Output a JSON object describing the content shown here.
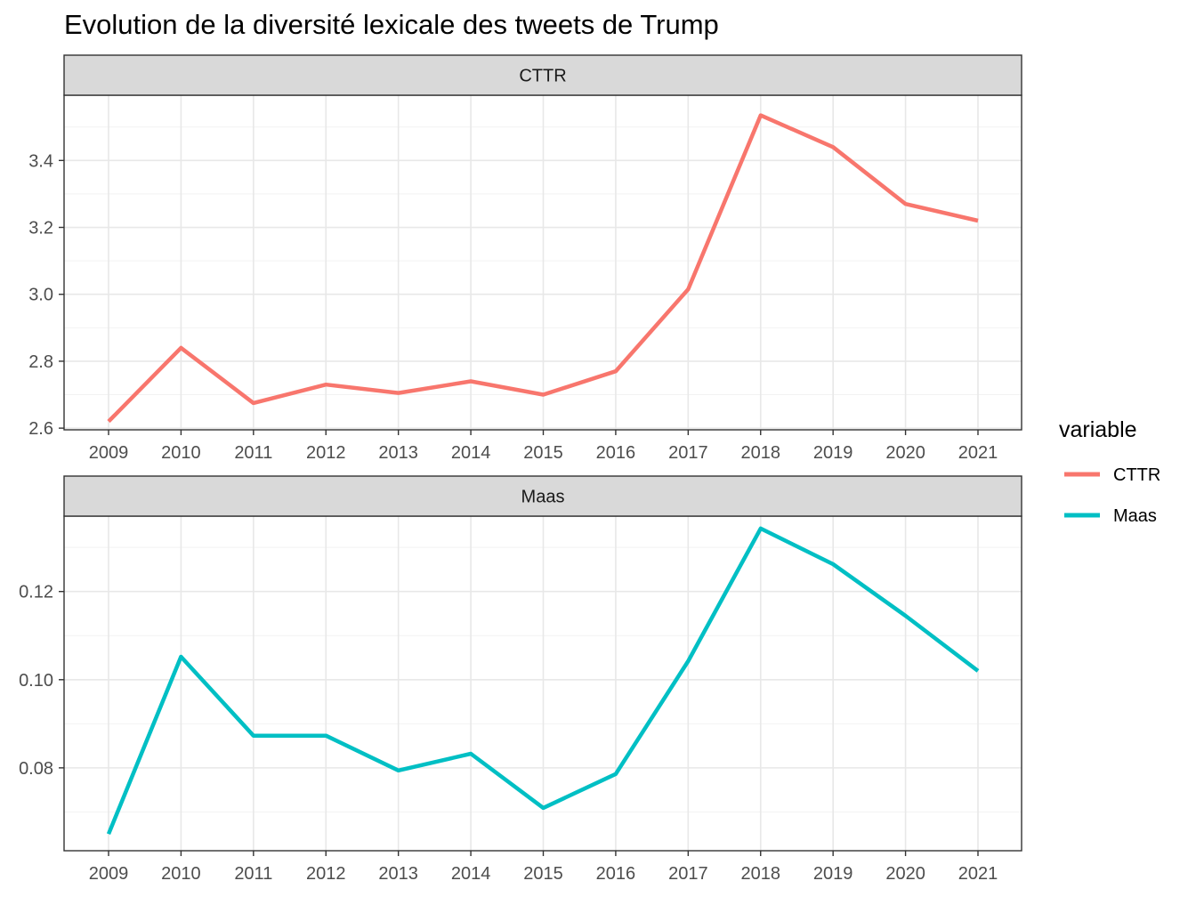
{
  "chart_data": {
    "type": "line",
    "title": "Evolution de la diversité lexicale des tweets de Trump",
    "x": [
      2009,
      2010,
      2011,
      2012,
      2013,
      2014,
      2015,
      2016,
      2017,
      2018,
      2019,
      2020,
      2021
    ],
    "facets": [
      {
        "label": "CTTR",
        "series": "CTTR",
        "values": [
          2.62,
          2.84,
          2.675,
          2.73,
          2.705,
          2.74,
          2.7,
          2.77,
          3.015,
          3.535,
          3.44,
          3.27,
          3.22
        ],
        "yticks": [
          2.6,
          2.8,
          3.0,
          3.2,
          3.4
        ],
        "ytick_labels": [
          "2.6",
          "2.8",
          "3.0",
          "3.2",
          "3.4"
        ],
        "ylim": [
          2.595,
          3.595
        ]
      },
      {
        "label": "Maas",
        "series": "Maas",
        "values": [
          0.065,
          0.1052,
          0.0873,
          0.0873,
          0.0794,
          0.0832,
          0.0709,
          0.0786,
          0.1042,
          0.1343,
          0.1262,
          0.1145,
          0.102
        ],
        "yticks": [
          0.08,
          0.1,
          0.12
        ],
        "ytick_labels": [
          "0.08",
          "0.10",
          "0.12"
        ],
        "ylim": [
          0.0612,
          0.1371
        ]
      }
    ],
    "legend": {
      "title": "variable",
      "position": "right",
      "entries": [
        {
          "name": "CTTR",
          "color": "#F8766D"
        },
        {
          "name": "Maas",
          "color": "#00BFC4"
        }
      ]
    },
    "grid": true
  }
}
